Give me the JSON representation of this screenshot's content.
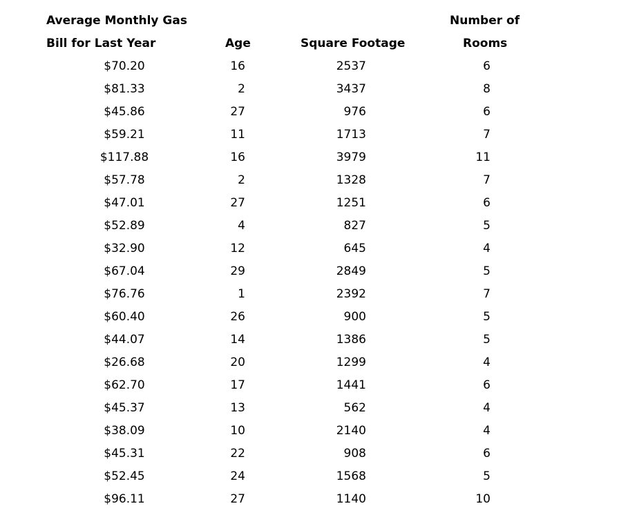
{
  "headers": {
    "bill_line1": "Average Monthly Gas",
    "bill_line2": "Bill for Last Year",
    "age": "Age",
    "sqft": "Square Footage",
    "rooms_line1": "Number of",
    "rooms_line2": "Rooms"
  },
  "rows": [
    {
      "bill": "$70.20",
      "age": "16",
      "sqft": "2537",
      "rooms": "6"
    },
    {
      "bill": "$81.33",
      "age": "2",
      "sqft": "3437",
      "rooms": "8"
    },
    {
      "bill": "$45.86",
      "age": "27",
      "sqft": "976",
      "rooms": "6"
    },
    {
      "bill": "$59.21",
      "age": "11",
      "sqft": "1713",
      "rooms": "7"
    },
    {
      "bill": "$117.88",
      "age": "16",
      "sqft": "3979",
      "rooms": "11"
    },
    {
      "bill": "$57.78",
      "age": "2",
      "sqft": "1328",
      "rooms": "7"
    },
    {
      "bill": "$47.01",
      "age": "27",
      "sqft": "1251",
      "rooms": "6"
    },
    {
      "bill": "$52.89",
      "age": "4",
      "sqft": "827",
      "rooms": "5"
    },
    {
      "bill": "$32.90",
      "age": "12",
      "sqft": "645",
      "rooms": "4"
    },
    {
      "bill": "$67.04",
      "age": "29",
      "sqft": "2849",
      "rooms": "5"
    },
    {
      "bill": "$76.76",
      "age": "1",
      "sqft": "2392",
      "rooms": "7"
    },
    {
      "bill": "$60.40",
      "age": "26",
      "sqft": "900",
      "rooms": "5"
    },
    {
      "bill": "$44.07",
      "age": "14",
      "sqft": "1386",
      "rooms": "5"
    },
    {
      "bill": "$26.68",
      "age": "20",
      "sqft": "1299",
      "rooms": "4"
    },
    {
      "bill": "$62.70",
      "age": "17",
      "sqft": "1441",
      "rooms": "6"
    },
    {
      "bill": "$45.37",
      "age": "13",
      "sqft": "562",
      "rooms": "4"
    },
    {
      "bill": "$38.09",
      "age": "10",
      "sqft": "2140",
      "rooms": "4"
    },
    {
      "bill": "$45.31",
      "age": "22",
      "sqft": "908",
      "rooms": "6"
    },
    {
      "bill": "$52.45",
      "age": "24",
      "sqft": "1568",
      "rooms": "5"
    },
    {
      "bill": "$96.11",
      "age": "27",
      "sqft": "1140",
      "rooms": "10"
    }
  ]
}
